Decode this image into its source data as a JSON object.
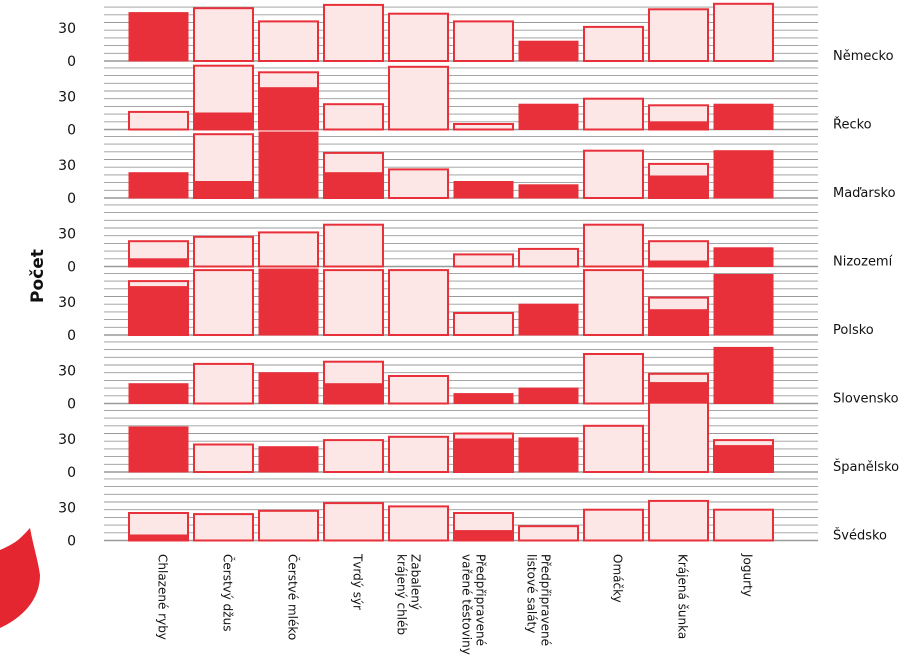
{
  "chart_data": {
    "type": "bar",
    "ylabel": "Počet",
    "categories": [
      "Chlazené ryby",
      "Čerstvý džus",
      "Čerstvé mléko",
      "Tvrdý sýr",
      "Zabalený krájený chléb",
      "Předpřipravené vařené těstoviny",
      "Předpřipravené listové saláty",
      "Omáčky",
      "Krájená šunka",
      "Jogurty"
    ],
    "yticks": [
      0,
      30
    ],
    "ylim": [
      0,
      56
    ],
    "series": [
      {
        "values_note": "dark red = first value, light outlined = second value"
      }
    ],
    "colors": {
      "dark": "#e8303a",
      "light": "#fde6e6",
      "grid": "#9a9a9a",
      "decoration": "#e32630"
    },
    "panels": [
      {
        "country": "Německo",
        "dark": [
          44,
          0,
          0,
          0,
          0,
          0,
          18,
          0,
          0,
          0
        ],
        "light": [
          0,
          48,
          36,
          51,
          43,
          36,
          0,
          31,
          47,
          52
        ]
      },
      {
        "country": "Řecko",
        "dark": [
          0,
          15,
          38,
          0,
          0,
          0,
          23,
          0,
          7,
          23
        ],
        "light": [
          16,
          58,
          52,
          23,
          57,
          5,
          0,
          28,
          22,
          0
        ]
      },
      {
        "country": "Maďarsko",
        "dark": [
          23,
          15,
          60,
          23,
          0,
          15,
          12,
          0,
          20,
          43
        ],
        "light": [
          0,
          58,
          0,
          41,
          26,
          0,
          0,
          43,
          31,
          0
        ]
      },
      {
        "country": "Nizozemí",
        "dark": [
          7,
          0,
          0,
          0,
          0,
          0,
          0,
          0,
          5,
          17
        ],
        "light": [
          23,
          27,
          31,
          38,
          0,
          11,
          16,
          38,
          23,
          0
        ]
      },
      {
        "country": "Polsko",
        "dark": [
          44,
          0,
          60,
          0,
          0,
          0,
          28,
          0,
          23,
          55
        ],
        "light": [
          49,
          59,
          0,
          59,
          59,
          20,
          0,
          59,
          34,
          0
        ]
      },
      {
        "country": "Slovensko",
        "dark": [
          18,
          0,
          28,
          18,
          0,
          9,
          14,
          0,
          19,
          51
        ],
        "light": [
          0,
          36,
          0,
          38,
          25,
          0,
          0,
          45,
          27,
          0
        ]
      },
      {
        "country": "Španělsko",
        "dark": [
          41,
          0,
          23,
          0,
          0,
          30,
          31,
          0,
          0,
          24
        ],
        "light": [
          0,
          25,
          0,
          29,
          32,
          35,
          0,
          42,
          63,
          29
        ]
      },
      {
        "country": "Švédsko",
        "dark": [
          5,
          0,
          0,
          0,
          0,
          9,
          0,
          0,
          0,
          0
        ],
        "light": [
          25,
          24,
          27,
          34,
          31,
          25,
          13,
          28,
          36,
          28
        ]
      }
    ]
  }
}
